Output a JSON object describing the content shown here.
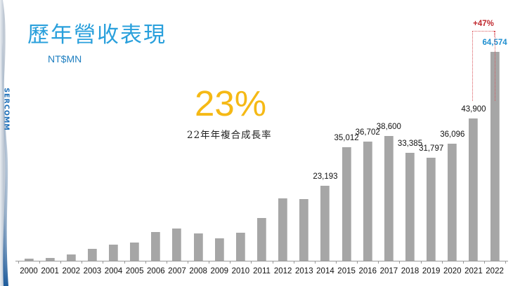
{
  "slide": {
    "title": "歷年營收表現",
    "unit": "NT$MN",
    "logo_text": "SERCOMM",
    "cagr_value": "23%",
    "cagr_label": "22年年複合成長率",
    "growth_annotation": "+47%",
    "colors": {
      "title": "#2aa0dc",
      "cagr": "#f5b915",
      "bar": "#a6a6a6",
      "highlight_label": "#1f8fd0",
      "growth": "#c0282e"
    }
  },
  "chart_data": {
    "type": "bar",
    "title": "歷年營收表現",
    "ylabel": "NT$MN",
    "xlabel": "",
    "categories": [
      "2000",
      "2001",
      "2002",
      "2003",
      "2004",
      "2005",
      "2006",
      "2007",
      "2008",
      "2009",
      "2010",
      "2011",
      "2012",
      "2013",
      "2014",
      "2015",
      "2016",
      "2017",
      "2018",
      "2019",
      "2020",
      "2021",
      "2022"
    ],
    "values": [
      650,
      950,
      1950,
      3700,
      5000,
      5600,
      8900,
      10000,
      8400,
      6900,
      8600,
      13200,
      19200,
      19000,
      23193,
      35012,
      36702,
      38600,
      33385,
      31797,
      36096,
      43900,
      64574
    ],
    "data_labels": [
      "",
      "",
      "",
      "",
      "",
      "",
      "",
      "",
      "",
      "",
      "",
      "",
      "",
      "",
      "23,193",
      "35,012",
      "36,702",
      "38,600",
      "33,385",
      "31,797",
      "36,096",
      "43,900",
      "64,574"
    ],
    "highlight_index": 22,
    "annotations": [
      {
        "text": "23%",
        "note": "22年年複合成長率"
      },
      {
        "text": "+47%",
        "from": "2021",
        "to": "2022"
      }
    ],
    "grid": false,
    "legend": "none",
    "ylim": [
      0,
      65000
    ]
  }
}
